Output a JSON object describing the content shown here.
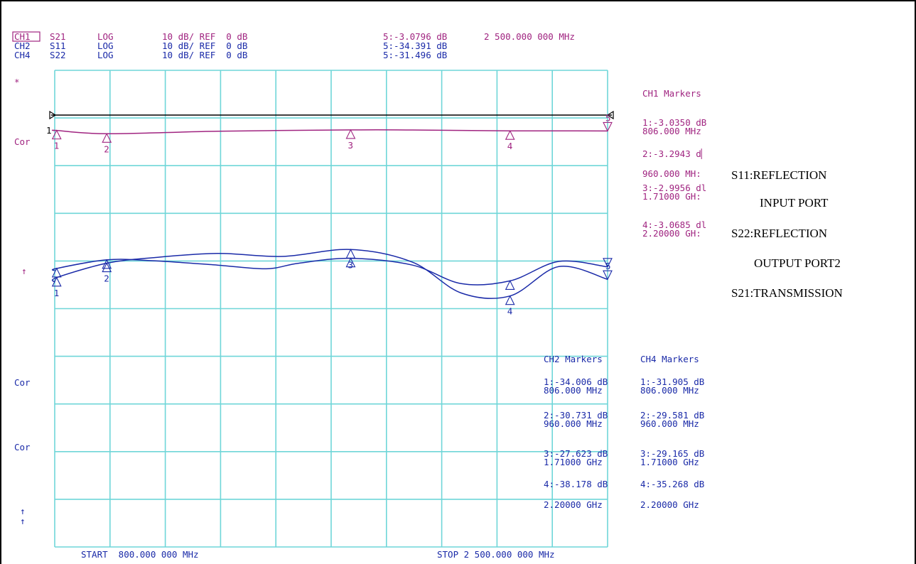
{
  "header": {
    "channels": [
      {
        "ch": "CH1",
        "param": "S21",
        "fmt": "LOG",
        "scale": "10 dB/ REF  0 dB",
        "marker_value": "5:-3.0796 dB",
        "marker_freq": "2 500.000 000 MHz"
      },
      {
        "ch": "CH2",
        "param": "S11",
        "fmt": "LOG",
        "scale": "10 dB/ REF  0 dB",
        "marker_value": "5:-34.391 dB"
      },
      {
        "ch": "CH4",
        "param": "S22",
        "fmt": "LOG",
        "scale": "10 dB/ REF  0 dB",
        "marker_value": "5:-31.496 dB"
      }
    ]
  },
  "left_annotations": {
    "star": "*",
    "cor1": "Cor",
    "arrow1": "↑",
    "cor2": "Cor",
    "cor3": "Cor",
    "arrow2": "↑",
    "arrow3": "↑"
  },
  "ch1_markers": {
    "title": "CH1 Markers",
    "items": [
      {
        "line1": "1:-3.0350 dB",
        "line2": "806.000 MHz"
      },
      {
        "line1": "2:-3.2943 d▏",
        "line2": "960.000 MH:"
      },
      {
        "line1": "3:-2.9956 dl",
        "line2": "1.71000 GH:"
      },
      {
        "line1": "4:-3.0685 dl",
        "line2": "2.20000 GH:"
      }
    ]
  },
  "ch2_markers": {
    "title": "CH2 Markers",
    "items": [
      {
        "line1": "1:-34.006 dB",
        "line2": "806.000 MHz"
      },
      {
        "line1": "2:-30.731 dB",
        "line2": "960.000 MHz"
      },
      {
        "line1": "3:-27.623 dB",
        "line2": "1.71000 GHz"
      },
      {
        "line1": "4:-38.178 dB",
        "line2": "2.20000 GHz"
      }
    ]
  },
  "ch4_markers": {
    "title": "CH4 Markers",
    "items": [
      {
        "line1": "1:-31.905 dB",
        "line2": "806.000 MHz"
      },
      {
        "line1": "2:-29.581 dB",
        "line2": "960.000 MHz"
      },
      {
        "line1": "3:-29.165 dB",
        "line2": "1.71000 GHz"
      },
      {
        "line1": "4:-35.268 dB",
        "line2": "2.20000 GHz"
      }
    ]
  },
  "legend_notes": {
    "line1": "S11:REFLECTION",
    "line2": "INPUT PORT",
    "line3": "S22:REFLECTION",
    "line4": "OUTPUT PORT2",
    "line5": "S21:TRANSMISSION"
  },
  "footer": {
    "start": "START  800.000 000 MHz",
    "stop": "STOP 2 500.000 000 MHz"
  },
  "colors": {
    "ch1": "#a02480",
    "ch2ch4": "#1a2aa8",
    "grid": "#6fd6d8",
    "reference": "#000000"
  },
  "chart_data": {
    "type": "line",
    "x_unit": "MHz",
    "xlim": [
      800,
      2500
    ],
    "grid": true,
    "x_divisions": 10,
    "y_divisions": 10,
    "series": [
      {
        "name": "S21",
        "channel": "CH1",
        "x": [
          800,
          806,
          960,
          1300,
          1710,
          1900,
          2200,
          2400,
          2500
        ],
        "y": [
          -3.05,
          -3.035,
          -3.2943,
          -3.1,
          -2.9956,
          -3.0,
          -3.0685,
          -3.07,
          -3.0796
        ]
      },
      {
        "name": "S11",
        "channel": "CH2",
        "x": [
          800,
          806,
          960,
          1100,
          1300,
          1500,
          1710,
          1900,
          2050,
          2200,
          2350,
          2500
        ],
        "y": [
          -35.0,
          -34.006,
          -30.731,
          -29.5,
          -28.5,
          -29.2,
          -27.623,
          -30.5,
          -37.5,
          -38.178,
          -31.5,
          -34.391
        ]
      },
      {
        "name": "S22",
        "channel": "CH4",
        "x": [
          800,
          806,
          960,
          1100,
          1300,
          1450,
          1550,
          1710,
          1900,
          2050,
          2200,
          2350,
          2500
        ],
        "y": [
          -32.5,
          -31.905,
          -29.581,
          -29.8,
          -31.0,
          -32.0,
          -30.5,
          -29.165,
          -31.0,
          -36.0,
          -35.268,
          -30.0,
          -31.496
        ]
      }
    ],
    "markers": [
      {
        "id": "1",
        "x": 806
      },
      {
        "id": "2",
        "x": 960
      },
      {
        "id": "3",
        "x": 1710
      },
      {
        "id": "4",
        "x": 2200
      },
      {
        "id": "5",
        "x": 2500
      }
    ]
  }
}
